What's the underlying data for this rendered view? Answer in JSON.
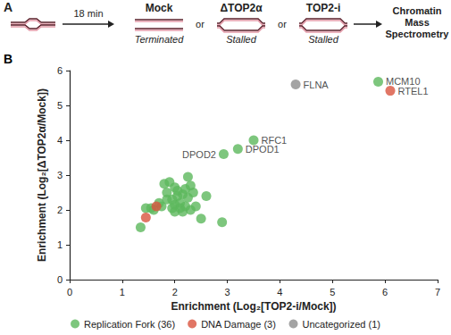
{
  "panel_a": {
    "label": "A",
    "step": "18 min",
    "separator": "or",
    "conditions": [
      {
        "name": "Mock",
        "state": "Terminated"
      },
      {
        "name": "ΔTOP2α",
        "state": "Stalled"
      },
      {
        "name": "TOP2-i",
        "state": "Stalled"
      }
    ],
    "readout": [
      "Chromatin",
      "Mass",
      "Spectrometry"
    ]
  },
  "panel_b_label": "B",
  "chart_data": {
    "type": "scatter",
    "xlabel": "Enrichment (Log₂[TOP2-i/Mock])",
    "ylabel": "Enrichment (Log₂[ΔTOP2α/Mock])",
    "xlim": [
      0,
      7
    ],
    "xticks": [
      0,
      1,
      2,
      3,
      4,
      5,
      6,
      7
    ],
    "ylim": [
      0,
      6
    ],
    "yticks": [
      0,
      1,
      2,
      3,
      4,
      5,
      6
    ],
    "grid": false,
    "legend": "bottom",
    "marker": "circle",
    "series": [
      {
        "name": "Replication Fork (36)",
        "color": "#5cb85c",
        "x": [
          5.87,
          3.5,
          3.2,
          2.93,
          1.35,
          1.45,
          1.55,
          1.6,
          1.75,
          1.8,
          1.9,
          2.0,
          1.85,
          1.95,
          2.05,
          2.1,
          2.15,
          2.2,
          2.25,
          2.3,
          1.95,
          2.0,
          2.1,
          2.2,
          2.25,
          2.3,
          2.4,
          2.0,
          1.7,
          2.15,
          2.6,
          2.5,
          2.9,
          1.85,
          2.35,
          2.05
        ],
        "y": [
          5.68,
          4.0,
          3.75,
          3.6,
          1.5,
          2.05,
          2.05,
          2.0,
          2.1,
          2.75,
          2.8,
          2.65,
          2.3,
          2.3,
          2.4,
          2.2,
          2.45,
          2.6,
          2.95,
          2.7,
          2.05,
          2.15,
          2.05,
          2.1,
          2.35,
          2.0,
          2.1,
          1.95,
          2.2,
          1.95,
          2.4,
          1.75,
          1.65,
          2.5,
          2.5,
          2.55
        ],
        "labels": [
          "MCM10",
          "RFC1",
          "DPOD1",
          "DPOD2",
          null,
          null,
          null,
          null,
          null,
          null,
          null,
          null,
          null,
          null,
          null,
          null,
          null,
          null,
          null,
          null,
          null,
          null,
          null,
          null,
          null,
          null,
          null,
          null,
          null,
          null,
          null,
          null,
          null,
          null,
          null,
          null
        ]
      },
      {
        "name": "DNA Damage (3)",
        "color": "#d9543f",
        "x": [
          6.1,
          1.65,
          1.45
        ],
        "y": [
          5.42,
          2.1,
          1.78
        ],
        "labels": [
          "RTEL1",
          null,
          null
        ]
      },
      {
        "name": "Uncategorized (1)",
        "color": "#8c8c8c",
        "x": [
          4.3
        ],
        "y": [
          5.6
        ],
        "labels": [
          "FLNA"
        ]
      }
    ]
  }
}
